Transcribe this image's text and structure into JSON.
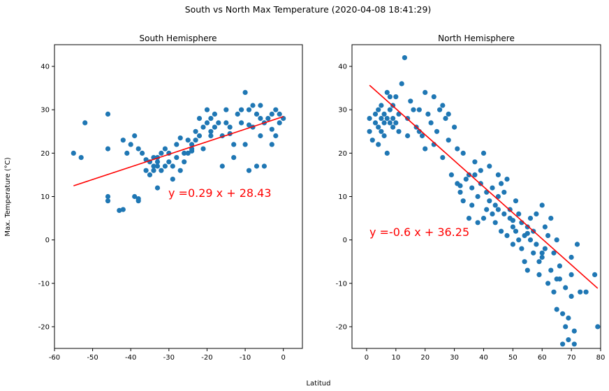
{
  "suptitle": "South vs North Max Temperature (2020-04-08 18:41:29)",
  "ylabel": "Max. Temperature (°C)",
  "xlabel": "Latitud",
  "colors": {
    "points": "#1f77b4",
    "fit": "#ff0000",
    "equation": "#ff0000"
  },
  "chart_data": [
    {
      "type": "scatter",
      "title": "South Hemisphere",
      "xlim": [
        -60,
        5
      ],
      "ylim": [
        -25,
        45
      ],
      "xticks": [
        -60,
        -50,
        -40,
        -30,
        -20,
        -10,
        0
      ],
      "yticks": [
        -20,
        -10,
        0,
        10,
        20,
        30,
        40
      ],
      "equation": "y =0.29 x  + 28.43",
      "fit": {
        "slope": 0.29,
        "intercept": 28.43,
        "x_range": [
          -55,
          0
        ]
      },
      "x": [
        -55,
        -53,
        -52,
        -46,
        -46,
        -46,
        -46,
        -43,
        -42,
        -42,
        -41,
        -40,
        -39,
        -39,
        -38,
        -38,
        -38,
        -37,
        -36,
        -35,
        -35,
        -34,
        -34,
        -34,
        -33,
        -33,
        -33,
        -32,
        -32,
        -31,
        -30,
        -30,
        -29,
        -29,
        -28,
        -28,
        -27,
        -26,
        -26,
        -25,
        -25,
        -24,
        -24,
        -23,
        -23,
        -22,
        -22,
        -21,
        -21,
        -20,
        -20,
        -19,
        -19,
        -18,
        -18,
        -17,
        -16,
        -16,
        -15,
        -15,
        -14,
        -13,
        -13,
        -12,
        -11,
        -11,
        -10,
        -10,
        -9,
        -9,
        -8,
        -8,
        -7,
        -7,
        -6,
        -6,
        -5,
        -5,
        -4,
        -3,
        -3,
        -2,
        -2,
        -1,
        -1,
        0,
        -36,
        -33,
        -31,
        -27,
        -24,
        -19,
        -14,
        -9,
        -6,
        -3
      ],
      "y": [
        20,
        19,
        27,
        29,
        21,
        10,
        9,
        6.8,
        23,
        7,
        20,
        22,
        24,
        10,
        9.5,
        9,
        21,
        20,
        16,
        15,
        18,
        19,
        17,
        16,
        18,
        17,
        12,
        20,
        16,
        21,
        20,
        18,
        17,
        14,
        22,
        19,
        16,
        18,
        20,
        23,
        20,
        22,
        21,
        25,
        23,
        28,
        24,
        26,
        21,
        27,
        30,
        28,
        25,
        29,
        26,
        27,
        17,
        24,
        30,
        27,
        26,
        22,
        19,
        29,
        27,
        30,
        34,
        22,
        30,
        16,
        31,
        26,
        29,
        17,
        31,
        24,
        27,
        17,
        28,
        29,
        22,
        30,
        24,
        27,
        29,
        28,
        18.5,
        19,
        17,
        23.5,
        20.5,
        24,
        24.5,
        26.5,
        28,
        25.5
      ]
    },
    {
      "type": "scatter",
      "title": "North Hemisphere",
      "xlim": [
        -5,
        80
      ],
      "ylim": [
        -25,
        45
      ],
      "xticks": [
        0,
        10,
        20,
        30,
        40,
        50,
        60,
        70,
        80
      ],
      "yticks": [
        -20,
        -10,
        0,
        10,
        20,
        30,
        40
      ],
      "equation": "y =-0.6 x  + 36.25",
      "fit": {
        "slope": -0.6,
        "intercept": 36.25,
        "x_range": [
          1,
          79
        ]
      },
      "x": [
        1,
        1,
        2,
        3,
        3,
        4,
        4,
        4,
        5,
        5,
        5,
        6,
        6,
        6,
        7,
        7,
        7,
        8,
        8,
        8,
        9,
        9,
        9,
        10,
        10,
        11,
        11,
        12,
        13,
        14,
        14,
        15,
        16,
        17,
        18,
        18,
        19,
        20,
        20,
        21,
        22,
        23,
        23,
        24,
        25,
        26,
        26,
        27,
        28,
        28,
        29,
        30,
        31,
        31,
        32,
        33,
        33,
        34,
        35,
        35,
        36,
        36,
        37,
        37,
        38,
        38,
        39,
        39,
        40,
        40,
        41,
        41,
        42,
        42,
        43,
        43,
        44,
        44,
        45,
        45,
        46,
        46,
        47,
        47,
        48,
        48,
        49,
        49,
        50,
        50,
        51,
        51,
        52,
        52,
        53,
        53,
        54,
        54,
        55,
        55,
        56,
        56,
        57,
        57,
        58,
        58,
        59,
        59,
        60,
        60,
        61,
        61,
        62,
        62,
        63,
        63,
        64,
        64,
        65,
        65,
        66,
        66,
        67,
        67,
        68,
        68,
        69,
        69,
        70,
        70,
        71,
        71,
        72,
        73,
        78,
        79,
        32,
        45,
        50,
        55,
        60,
        65,
        70,
        75
      ],
      "y": [
        25,
        28,
        23,
        29,
        27,
        30,
        22,
        26,
        28,
        25,
        31,
        27,
        29,
        24,
        34,
        20,
        28,
        33,
        27,
        30,
        28,
        31,
        26,
        27,
        33,
        29,
        25,
        36,
        42,
        28,
        24,
        32,
        30,
        26,
        25,
        30,
        24,
        21,
        34,
        29,
        27,
        33,
        22,
        25,
        30,
        31,
        19,
        28,
        29,
        23,
        15,
        26,
        13,
        21,
        11,
        9,
        20,
        14,
        15,
        5,
        12,
        8,
        15,
        18,
        10,
        4,
        13,
        16,
        5,
        20,
        11,
        7,
        9,
        17,
        6,
        12,
        8,
        4,
        10,
        15,
        2,
        13,
        11,
        6,
        1,
        14,
        7,
        5,
        3,
        -1,
        9,
        2,
        0,
        6,
        -2,
        4,
        1,
        -5,
        3,
        -7,
        0,
        5,
        -3,
        2,
        -1,
        6,
        -5,
        -8,
        8,
        -4,
        3,
        -2,
        -10,
        1,
        -7,
        5,
        -12,
        -3,
        -16,
        0,
        -9,
        -6,
        -24,
        -17,
        -11,
        -20,
        -18,
        -23,
        -13,
        -8,
        -24,
        -21,
        -1,
        -12,
        -8,
        -20,
        12.5,
        7,
        4.5,
        1.5,
        -3,
        -9,
        -4,
        -12
      ]
    }
  ]
}
